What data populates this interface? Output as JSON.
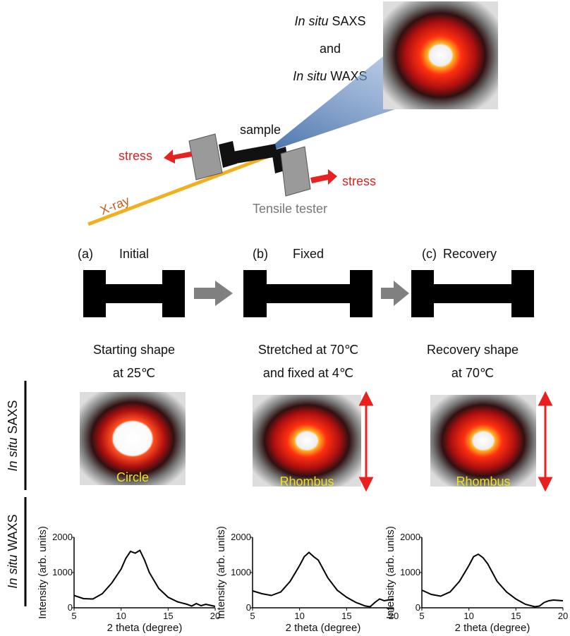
{
  "header": {
    "line1": {
      "italic": "In situ",
      "rest": "SAXS"
    },
    "line2": "and",
    "line3": {
      "italic": "In situ",
      "rest": "WAXS"
    }
  },
  "setup": {
    "sample": "sample",
    "stress_left": "stress",
    "stress_right": "stress",
    "xray": "X-ray",
    "tester": "Tensile tester"
  },
  "stages": [
    {
      "letter": "(a)",
      "name": "Initial",
      "desc1": "Starting shape",
      "desc2": "at 25℃",
      "pattern": "Circle"
    },
    {
      "letter": "(b)",
      "name": "Fixed",
      "desc1": "Stretched at 70℃",
      "desc2": "and fixed at 4℃",
      "pattern": "Rhombus"
    },
    {
      "letter": "(c)",
      "name": "Recovery",
      "desc1": "Recovery shape",
      "desc2": "at 70℃",
      "pattern": "Rhombus"
    }
  ],
  "row_labels": [
    {
      "italic": "In situ",
      "rest": "SAXS"
    },
    {
      "italic": "In situ",
      "rest": "WAXS"
    }
  ],
  "chart_data": [
    {
      "type": "line",
      "x_label": "2 theta (degree)",
      "y_label": "Intensity (arb. units)",
      "x": [
        5,
        6,
        7,
        8,
        9,
        10,
        10.5,
        11,
        11.5,
        12,
        12.5,
        13,
        14,
        15,
        16,
        17,
        17.5,
        18,
        18.5,
        19,
        20
      ],
      "series": [
        {
          "color": "#000000",
          "values": [
            350,
            260,
            250,
            400,
            700,
            1100,
            1400,
            1600,
            1550,
            1630,
            1350,
            1000,
            550,
            300,
            170,
            100,
            50,
            120,
            60,
            100,
            40
          ]
        }
      ],
      "xlim": [
        5,
        20
      ],
      "ylim": [
        0,
        2000
      ],
      "xticks": [
        5,
        10,
        15,
        20
      ],
      "yticks": [
        0,
        1000,
        2000
      ]
    },
    {
      "type": "line",
      "x_label": "2 theta (degree)",
      "y_label": "Intensity (arb. units)",
      "x": [
        5,
        6,
        7,
        8,
        9,
        10,
        10.5,
        11,
        11.5,
        12,
        12.5,
        13,
        14,
        15,
        16,
        17,
        17.5,
        18,
        18.5,
        19,
        20
      ],
      "series": [
        {
          "color": "#000000",
          "values": [
            480,
            400,
            350,
            450,
            750,
            1200,
            1450,
            1570,
            1450,
            1350,
            1100,
            850,
            500,
            300,
            150,
            50,
            30,
            150,
            250,
            200,
            250
          ]
        }
      ],
      "xlim": [
        5,
        20
      ],
      "ylim": [
        0,
        2000
      ],
      "xticks": [
        5,
        10,
        15,
        20
      ],
      "yticks": [
        0,
        1000,
        2000
      ]
    },
    {
      "type": "line",
      "x_label": "2 theta (degree)",
      "y_label": "Intensity (arb. units)",
      "x": [
        5,
        6,
        7,
        8,
        9,
        10,
        10.5,
        11,
        11.5,
        12,
        12.5,
        13,
        14,
        15,
        16,
        17,
        17.5,
        18,
        18.5,
        19,
        20
      ],
      "series": [
        {
          "color": "#000000",
          "values": [
            500,
            380,
            330,
            450,
            750,
            1200,
            1450,
            1520,
            1420,
            1250,
            1000,
            750,
            450,
            250,
            100,
            30,
            50,
            150,
            200,
            220,
            200
          ]
        }
      ],
      "xlim": [
        5,
        20
      ],
      "ylim": [
        0,
        2000
      ],
      "xticks": [
        5,
        10,
        15,
        20
      ],
      "yticks": [
        0,
        1000,
        2000
      ]
    }
  ]
}
